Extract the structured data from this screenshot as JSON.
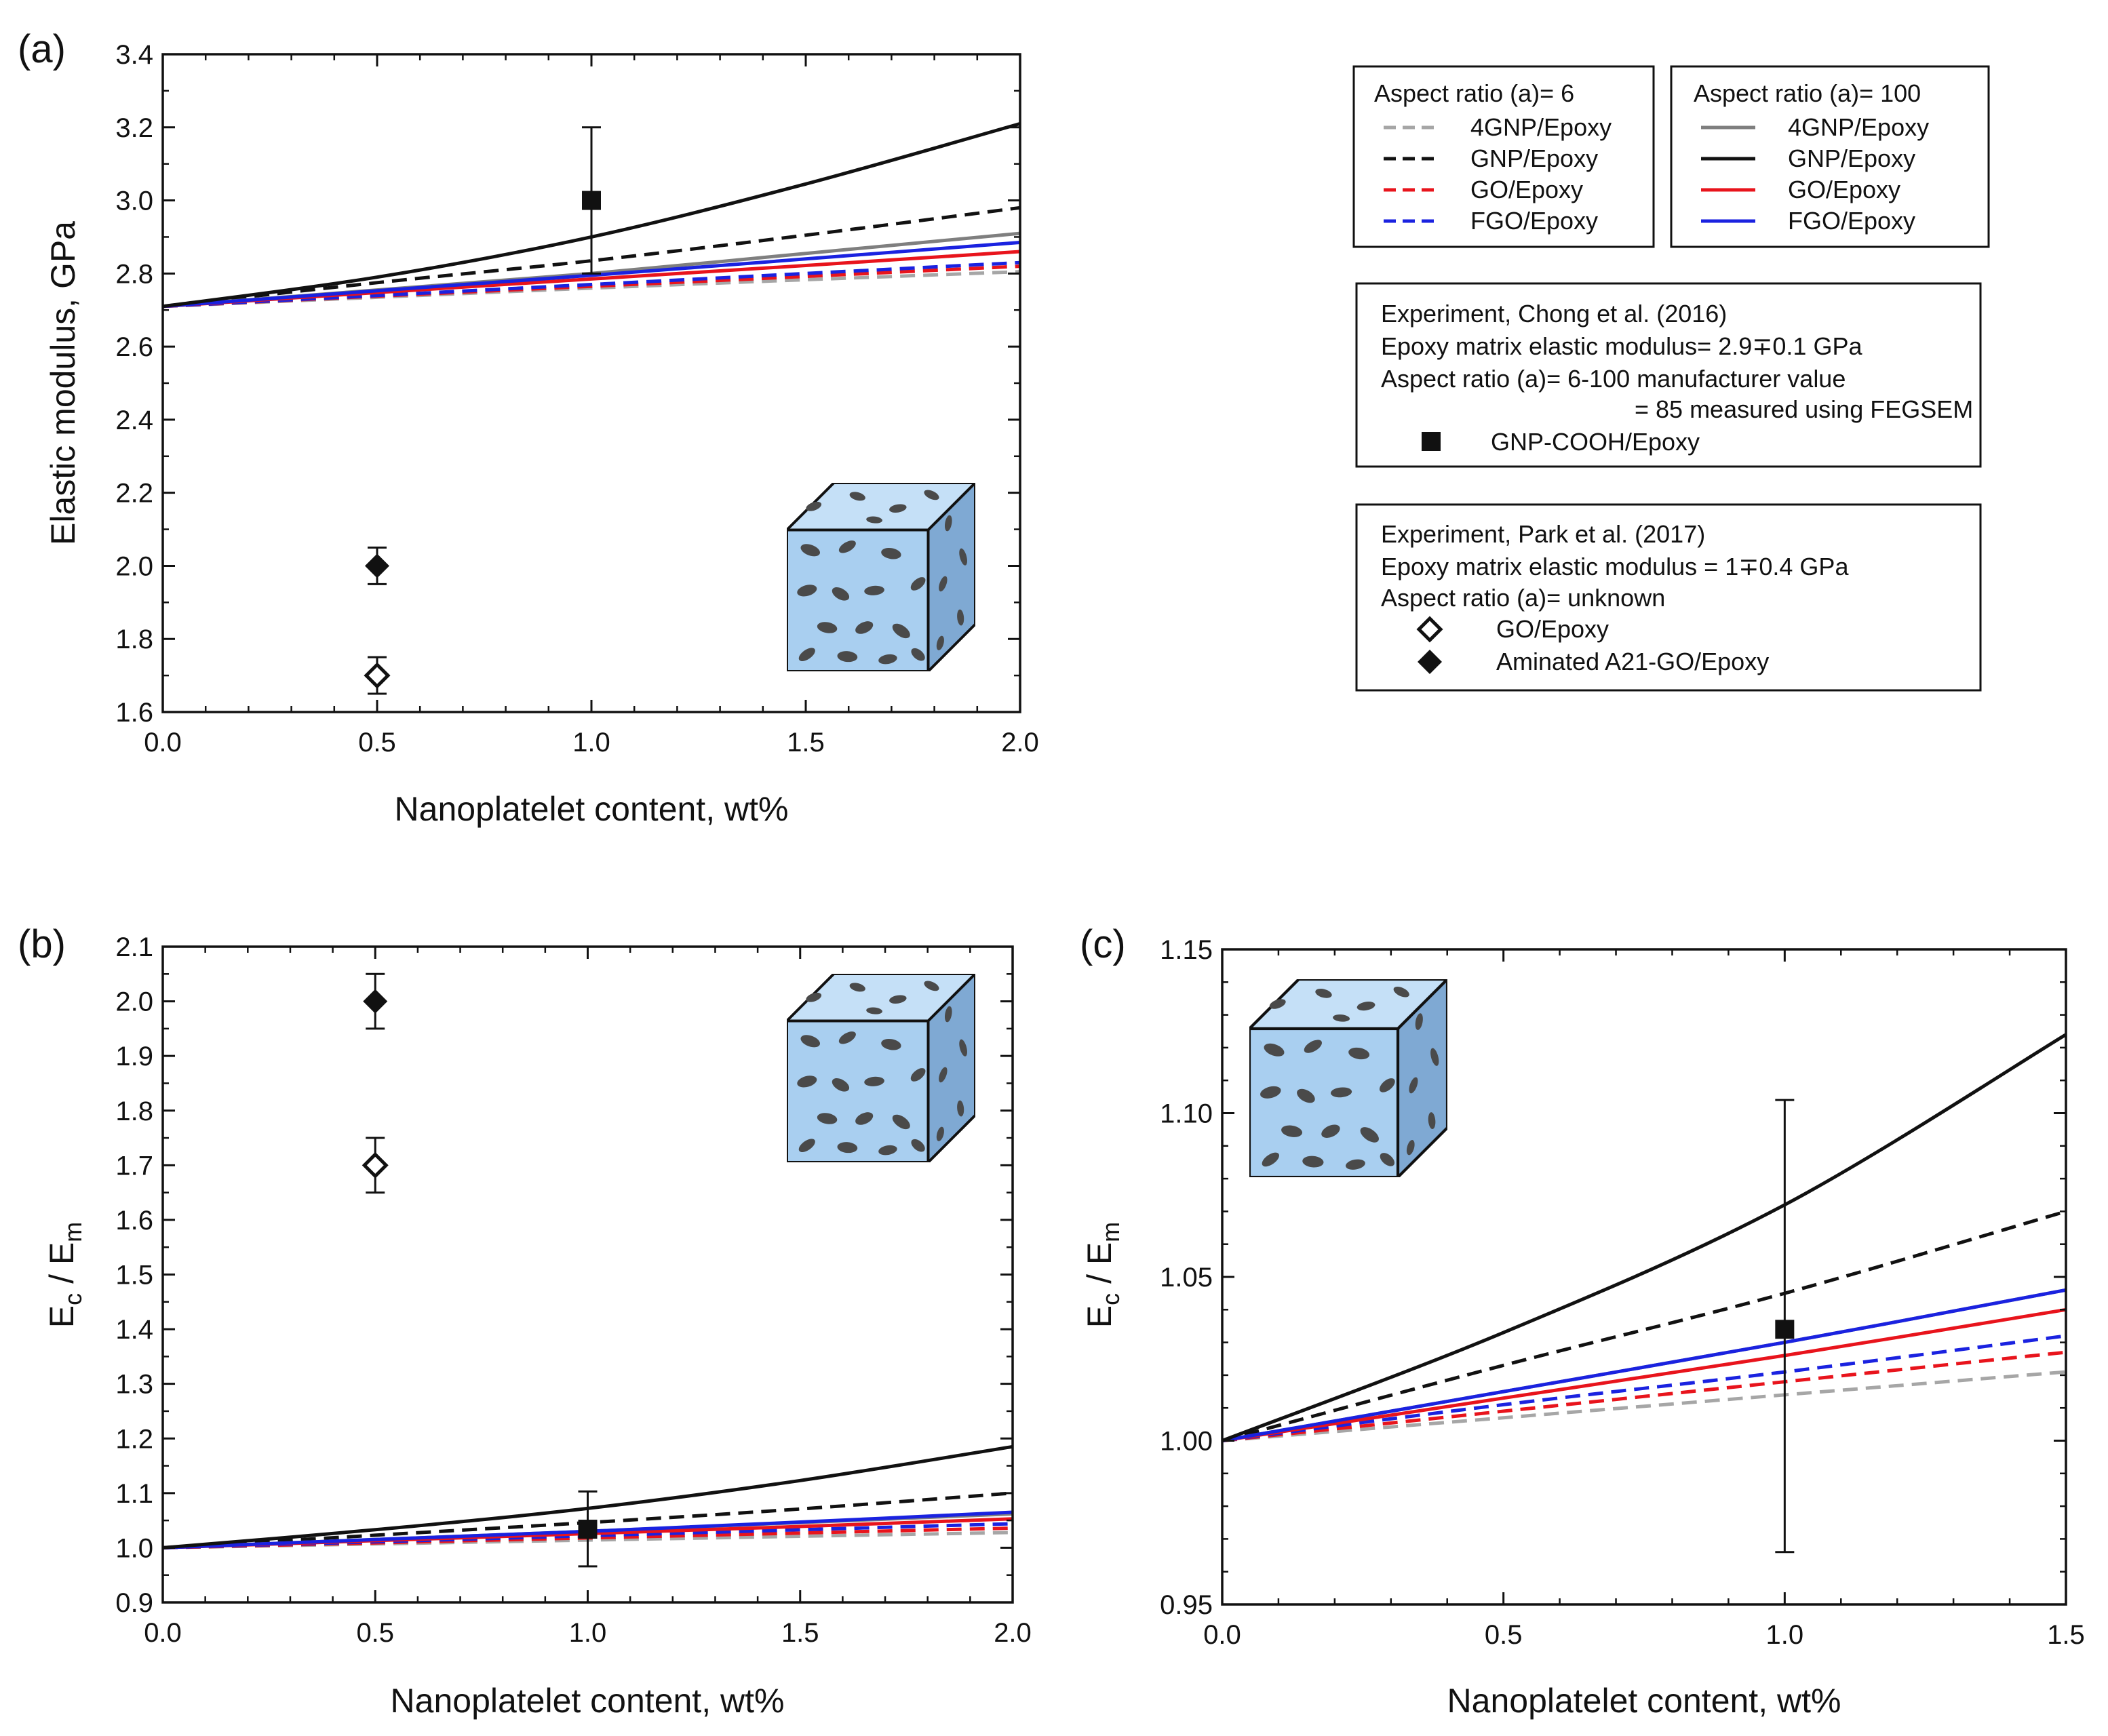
{
  "colors": {
    "light_gray": "#a6a6a6",
    "gray": "#7f7f7f",
    "black": "#111111",
    "red": "#e8141c",
    "blue": "#1a22e0",
    "cube_fill": "#a9cff0",
    "cube_top": "#c5e0f7",
    "cube_side": "#7fa9d3",
    "flake": "#4a4a4a"
  },
  "legend": {
    "aspect6": {
      "title": "Aspect ratio (a)= 6",
      "items": [
        {
          "label": "4GNP/Epoxy",
          "color": "#a6a6a6",
          "dash": true
        },
        {
          "label": "GNP/Epoxy",
          "color": "#111111",
          "dash": true
        },
        {
          "label": "GO/Epoxy",
          "color": "#e8141c",
          "dash": true
        },
        {
          "label": "FGO/Epoxy",
          "color": "#1a22e0",
          "dash": true
        }
      ]
    },
    "aspect100": {
      "title": "Aspect ratio (a)= 100",
      "items": [
        {
          "label": "4GNP/Epoxy",
          "color": "#7f7f7f",
          "dash": false
        },
        {
          "label": "GNP/Epoxy",
          "color": "#111111",
          "dash": false
        },
        {
          "label": "GO/Epoxy",
          "color": "#e8141c",
          "dash": false
        },
        {
          "label": "FGO/Epoxy",
          "color": "#1a22e0",
          "dash": false
        }
      ]
    },
    "chong": {
      "line1": "Experiment, Chong et al. (2016)",
      "line2": "Epoxy matrix elastic modulus= 2.9∓0.1 GPa",
      "line3": "Aspect ratio (a)= 6-100 manufacturer value",
      "line4": "= 85 measured using FEGSEM",
      "marker_label": "GNP-COOH/Epoxy"
    },
    "park": {
      "line1": "Experiment, Park et al. (2017)",
      "line2": "Epoxy matrix elastic modulus = 1∓0.4 GPa",
      "line3": "Aspect ratio (a)= unknown",
      "marker1_label": "GO/Epoxy",
      "marker2_label": "Aminated A21-GO/Epoxy"
    }
  },
  "chart_data": [
    {
      "panel": "(a)",
      "type": "line",
      "title": "",
      "xlabel": "Nanoplatelet content, wt%",
      "ylabel": "Elastic modulus, GPa",
      "xlim": [
        0,
        2
      ],
      "ylim": [
        1.6,
        3.4
      ],
      "xticks": [
        0.0,
        0.5,
        1.0,
        1.5,
        2.0
      ],
      "xtick_labels": [
        "0.0",
        "0.5",
        "1.0",
        "1.5",
        "2.0"
      ],
      "yticks": [
        1.6,
        1.8,
        2.0,
        2.2,
        2.4,
        2.6,
        2.8,
        3.0,
        3.2,
        3.4
      ],
      "ytick_labels": [
        "1.6",
        "1.8",
        "2.0",
        "2.2",
        "2.4",
        "2.6",
        "2.8",
        "3.0",
        "3.2",
        "3.4"
      ],
      "series": [
        {
          "name": "4GNP/Epoxy (a=6)",
          "color": "#a6a6a6",
          "dash": true,
          "x": [
            0,
            0.5,
            1.0,
            1.5,
            2.0
          ],
          "y": [
            2.71,
            2.735,
            2.76,
            2.783,
            2.805
          ]
        },
        {
          "name": "GO/Epoxy (a=6)",
          "color": "#e8141c",
          "dash": true,
          "x": [
            0,
            0.5,
            1.0,
            1.5,
            2.0
          ],
          "y": [
            2.71,
            2.738,
            2.765,
            2.792,
            2.82
          ]
        },
        {
          "name": "FGO/Epoxy (a=6)",
          "color": "#1a22e0",
          "dash": true,
          "x": [
            0,
            0.5,
            1.0,
            1.5,
            2.0
          ],
          "y": [
            2.71,
            2.74,
            2.77,
            2.8,
            2.83
          ]
        },
        {
          "name": "GNP/Epoxy (a=6)",
          "color": "#111111",
          "dash": true,
          "x": [
            0,
            0.5,
            1.0,
            1.5,
            2.0
          ],
          "y": [
            2.71,
            2.775,
            2.835,
            2.905,
            2.98
          ]
        },
        {
          "name": "4GNP/Epoxy (a=100)",
          "color": "#7f7f7f",
          "dash": false,
          "x": [
            0,
            0.5,
            1.0,
            1.5,
            2.0
          ],
          "y": [
            2.71,
            2.755,
            2.8,
            2.855,
            2.91
          ]
        },
        {
          "name": "GO/Epoxy (a=100)",
          "color": "#e8141c",
          "dash": false,
          "x": [
            0,
            0.5,
            1.0,
            1.5,
            2.0
          ],
          "y": [
            2.71,
            2.748,
            2.785,
            2.822,
            2.86
          ]
        },
        {
          "name": "FGO/Epoxy (a=100)",
          "color": "#1a22e0",
          "dash": false,
          "x": [
            0,
            0.5,
            1.0,
            1.5,
            2.0
          ],
          "y": [
            2.71,
            2.753,
            2.795,
            2.84,
            2.885
          ]
        },
        {
          "name": "GNP/Epoxy (a=100)",
          "color": "#111111",
          "dash": false,
          "x": [
            0,
            0.5,
            1.0,
            1.5,
            2.0
          ],
          "y": [
            2.71,
            2.79,
            2.9,
            3.045,
            3.21
          ]
        }
      ],
      "points": [
        {
          "name": "GNP-COOH/Epoxy",
          "marker": "square",
          "x": 1.0,
          "y": 3.0,
          "err_low": 2.8,
          "err_high": 3.2
        },
        {
          "name": "Aminated A21-GO/Epoxy",
          "marker": "diamond-filled",
          "x": 0.5,
          "y": 2.0,
          "err_low": 1.95,
          "err_high": 2.05
        },
        {
          "name": "GO/Epoxy",
          "marker": "diamond-open",
          "x": 0.5,
          "y": 1.7,
          "err_low": 1.65,
          "err_high": 1.75
        }
      ]
    },
    {
      "panel": "(b)",
      "type": "line",
      "title": "",
      "xlabel": "Nanoplatelet content, wt%",
      "ylabel": "Ec / Em",
      "xlim": [
        0,
        2
      ],
      "ylim": [
        0.9,
        2.1
      ],
      "xticks": [
        0.0,
        0.5,
        1.0,
        1.5,
        2.0
      ],
      "xtick_labels": [
        "0.0",
        "0.5",
        "1.0",
        "1.5",
        "2.0"
      ],
      "yticks": [
        0.9,
        1.0,
        1.1,
        1.2,
        1.3,
        1.4,
        1.5,
        1.6,
        1.7,
        1.8,
        1.9,
        2.0,
        2.1
      ],
      "ytick_labels": [
        "0.9",
        "1.0",
        "1.1",
        "1.2",
        "1.3",
        "1.4",
        "1.5",
        "1.6",
        "1.7",
        "1.8",
        "1.9",
        "2.0",
        "2.1"
      ],
      "series": [
        {
          "name": "4GNP/Epoxy (a=6)",
          "color": "#a6a6a6",
          "dash": true,
          "x": [
            0,
            0.5,
            1.0,
            1.5,
            2.0
          ],
          "y": [
            1.0,
            1.007,
            1.014,
            1.021,
            1.028
          ]
        },
        {
          "name": "GO/Epoxy (a=6)",
          "color": "#e8141c",
          "dash": true,
          "x": [
            0,
            0.5,
            1.0,
            1.5,
            2.0
          ],
          "y": [
            1.0,
            1.009,
            1.018,
            1.027,
            1.036
          ]
        },
        {
          "name": "FGO/Epoxy (a=6)",
          "color": "#1a22e0",
          "dash": true,
          "x": [
            0,
            0.5,
            1.0,
            1.5,
            2.0
          ],
          "y": [
            1.0,
            1.011,
            1.022,
            1.033,
            1.044
          ]
        },
        {
          "name": "GNP/Epoxy (a=6)",
          "color": "#111111",
          "dash": true,
          "x": [
            0,
            0.5,
            1.0,
            1.5,
            2.0
          ],
          "y": [
            1.0,
            1.023,
            1.046,
            1.071,
            1.1
          ]
        },
        {
          "name": "4GNP/Epoxy (a=100)",
          "color": "#7f7f7f",
          "dash": false,
          "x": [
            0,
            0.5,
            1.0,
            1.5,
            2.0
          ],
          "y": [
            1.0,
            1.015,
            1.03,
            1.046,
            1.062
          ]
        },
        {
          "name": "GO/Epoxy (a=100)",
          "color": "#e8141c",
          "dash": false,
          "x": [
            0,
            0.5,
            1.0,
            1.5,
            2.0
          ],
          "y": [
            1.0,
            1.013,
            1.026,
            1.039,
            1.053
          ]
        },
        {
          "name": "FGO/Epoxy (a=100)",
          "color": "#1a22e0",
          "dash": false,
          "x": [
            0,
            0.5,
            1.0,
            1.5,
            2.0
          ],
          "y": [
            1.0,
            1.015,
            1.03,
            1.047,
            1.065
          ]
        },
        {
          "name": "GNP/Epoxy (a=100)",
          "color": "#111111",
          "dash": false,
          "x": [
            0,
            0.5,
            1.0,
            1.5,
            2.0
          ],
          "y": [
            1.0,
            1.033,
            1.072,
            1.123,
            1.185
          ]
        }
      ],
      "points": [
        {
          "name": "GNP-COOH/Epoxy",
          "marker": "square",
          "x": 1.0,
          "y": 1.034,
          "err_low": 0.966,
          "err_high": 1.103
        },
        {
          "name": "Aminated A21-GO/Epoxy",
          "marker": "diamond-filled",
          "x": 0.5,
          "y": 2.0,
          "err_low": 1.95,
          "err_high": 2.05
        },
        {
          "name": "GO/Epoxy",
          "marker": "diamond-open",
          "x": 0.5,
          "y": 1.7,
          "err_low": 1.65,
          "err_high": 1.75
        }
      ]
    },
    {
      "panel": "(c)",
      "type": "line",
      "title": "",
      "xlabel": "Nanoplatelet content, wt%",
      "ylabel": "Ec / Em",
      "xlim": [
        0,
        1.5
      ],
      "ylim": [
        0.95,
        1.15
      ],
      "xticks": [
        0.0,
        0.5,
        1.0,
        1.5
      ],
      "xtick_labels": [
        "0.0",
        "0.5",
        "1.0",
        "1.5"
      ],
      "yticks": [
        0.95,
        1.0,
        1.05,
        1.1,
        1.15
      ],
      "ytick_labels": [
        "0.95",
        "1.00",
        "1.05",
        "1.10",
        "1.15"
      ],
      "series": [
        {
          "name": "4GNP/Epoxy (a=6)",
          "color": "#a6a6a6",
          "dash": true,
          "x": [
            0,
            0.5,
            1.0,
            1.5
          ],
          "y": [
            1.0,
            1.007,
            1.014,
            1.021
          ]
        },
        {
          "name": "GO/Epoxy (a=6)",
          "color": "#e8141c",
          "dash": true,
          "x": [
            0,
            0.5,
            1.0,
            1.5
          ],
          "y": [
            1.0,
            1.009,
            1.018,
            1.027
          ]
        },
        {
          "name": "FGO/Epoxy (a=6)",
          "color": "#1a22e0",
          "dash": true,
          "x": [
            0,
            0.5,
            1.0,
            1.5
          ],
          "y": [
            1.0,
            1.011,
            1.021,
            1.032
          ]
        },
        {
          "name": "GNP/Epoxy (a=6)",
          "color": "#111111",
          "dash": true,
          "x": [
            0,
            0.5,
            1.0,
            1.5
          ],
          "y": [
            1.0,
            1.023,
            1.045,
            1.07
          ]
        },
        {
          "name": "4GNP/Epoxy (a=100)",
          "color": "#7f7f7f",
          "dash": false,
          "x": [
            0,
            0.5,
            1.0,
            1.5
          ],
          "y": [
            1.0,
            1.015,
            1.03,
            1.046
          ]
        },
        {
          "name": "GO/Epoxy (a=100)",
          "color": "#e8141c",
          "dash": false,
          "x": [
            0,
            0.5,
            1.0,
            1.5
          ],
          "y": [
            1.0,
            1.013,
            1.026,
            1.04
          ]
        },
        {
          "name": "FGO/Epoxy (a=100)",
          "color": "#1a22e0",
          "dash": false,
          "x": [
            0,
            0.5,
            1.0,
            1.5
          ],
          "y": [
            1.0,
            1.015,
            1.03,
            1.046
          ]
        },
        {
          "name": "GNP/Epoxy (a=100)",
          "color": "#111111",
          "dash": false,
          "x": [
            0,
            0.5,
            1.0,
            1.5
          ],
          "y": [
            1.0,
            1.033,
            1.072,
            1.124
          ]
        }
      ],
      "points": [
        {
          "name": "GNP-COOH/Epoxy",
          "marker": "square",
          "x": 1.0,
          "y": 1.034,
          "err_low": 0.966,
          "err_high": 1.104
        }
      ]
    }
  ]
}
